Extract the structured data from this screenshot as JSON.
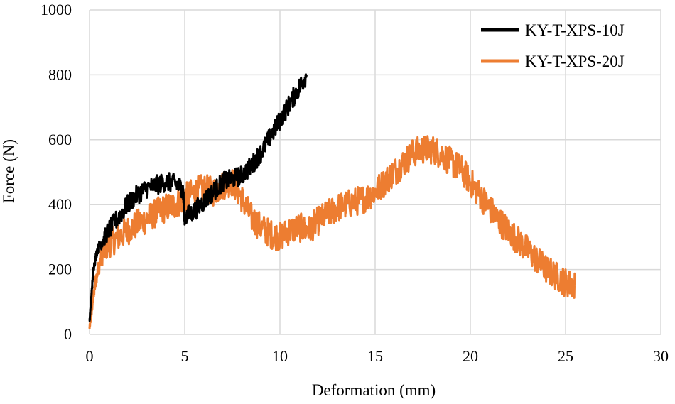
{
  "chart_data": {
    "type": "line",
    "title": "",
    "xlabel": "Deformation (mm)",
    "ylabel": "Force (N)",
    "xlim": [
      0,
      30
    ],
    "ylim": [
      0,
      1000
    ],
    "xticks": [
      0,
      5,
      10,
      15,
      20,
      25,
      30
    ],
    "xtick_labels": [
      "0",
      "5",
      "10",
      "15",
      "20",
      "25",
      "30"
    ],
    "yticks": [
      0,
      200,
      400,
      600,
      800,
      1000
    ],
    "ytick_labels": [
      "0",
      "200",
      "400",
      "600",
      "800",
      "1000"
    ],
    "grid": true,
    "legend_position": "top-right",
    "series": [
      {
        "name": "KY-T-XPS-10J",
        "color": "#000000",
        "x": [
          0,
          0.1,
          0.2,
          0.4,
          0.7,
          1.0,
          1.5,
          2.0,
          2.5,
          3.0,
          3.5,
          4.0,
          4.5,
          4.9,
          5.0,
          5.5,
          6.0,
          6.5,
          7.0,
          7.5,
          8.0,
          8.5,
          9.0,
          9.5,
          10.0,
          10.5,
          11.0,
          11.4
        ],
        "y": [
          40,
          120,
          200,
          260,
          290,
          320,
          360,
          400,
          430,
          450,
          460,
          470,
          465,
          450,
          360,
          380,
          410,
          440,
          470,
          480,
          490,
          520,
          560,
          610,
          660,
          710,
          760,
          800
        ],
        "noise": 30
      },
      {
        "name": "KY-T-XPS-20J",
        "color": "#ED7D31",
        "x": [
          0,
          0.1,
          0.2,
          0.4,
          0.7,
          1.0,
          1.5,
          2.0,
          2.5,
          3.0,
          3.5,
          4.0,
          4.5,
          5.0,
          5.5,
          6.0,
          6.5,
          7.0,
          7.5,
          8.0,
          8.5,
          9.0,
          9.5,
          10.0,
          10.5,
          11.0,
          11.5,
          12.0,
          12.5,
          13.0,
          13.5,
          14.0,
          14.5,
          15.0,
          15.5,
          16.0,
          16.5,
          17.0,
          17.5,
          18.0,
          18.5,
          19.0,
          19.5,
          20.0,
          20.5,
          21.0,
          21.5,
          22.0,
          22.5,
          23.0,
          23.5,
          24.0,
          24.5,
          25.0,
          25.5
        ],
        "y": [
          20,
          60,
          120,
          190,
          250,
          280,
          300,
          320,
          340,
          355,
          375,
          390,
          400,
          420,
          440,
          450,
          440,
          460,
          470,
          420,
          360,
          330,
          310,
          300,
          320,
          330,
          320,
          350,
          370,
          390,
          400,
          410,
          420,
          440,
          470,
          500,
          530,
          560,
          570,
          570,
          555,
          530,
          510,
          470,
          430,
          390,
          350,
          320,
          290,
          260,
          230,
          200,
          180,
          160,
          150
        ],
        "noise": 45
      }
    ]
  }
}
